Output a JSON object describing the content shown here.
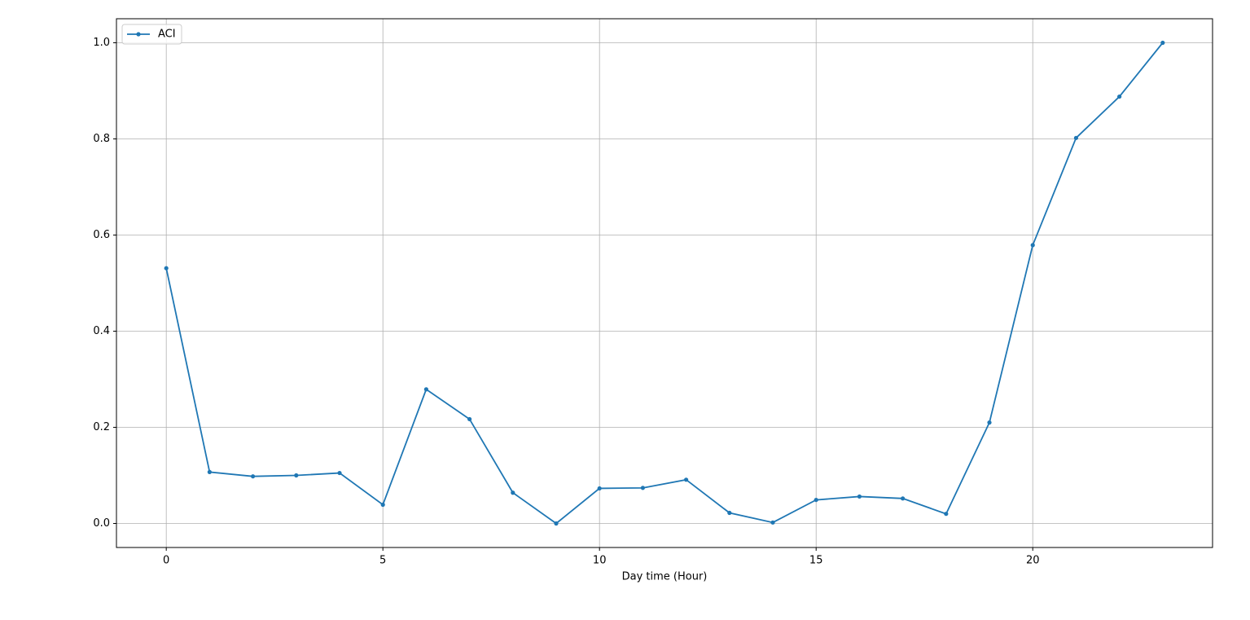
{
  "chart_data": {
    "type": "line",
    "xlabel": "Day time (Hour)",
    "x": [
      0,
      1,
      2,
      3,
      4,
      5,
      6,
      7,
      8,
      9,
      10,
      11,
      12,
      13,
      14,
      15,
      16,
      17,
      18,
      19,
      20,
      21,
      22,
      23
    ],
    "series": [
      {
        "name": "ACI",
        "color": "#1f77b4",
        "marker": "o",
        "values": [
          0.531,
          0.107,
          0.098,
          0.1,
          0.105,
          0.039,
          0.279,
          0.217,
          0.064,
          0.0,
          0.073,
          0.074,
          0.091,
          0.022,
          0.002,
          0.049,
          0.056,
          0.052,
          0.02,
          0.21,
          0.579,
          0.802,
          0.888,
          1.0
        ]
      }
    ],
    "xlim": [
      -1.15,
      24.15
    ],
    "ylim": [
      -0.05,
      1.05
    ],
    "xticks": [
      0,
      5,
      10,
      15,
      20
    ],
    "yticks": [
      {
        "value": 0,
        "label": "0.0"
      },
      {
        "value": 0.2,
        "label": "0.2"
      },
      {
        "value": 0.4,
        "label": "0.4"
      },
      {
        "value": 0.6,
        "label": "0.6"
      },
      {
        "value": 0.8,
        "label": "0.8"
      },
      {
        "value": 1.0,
        "label": "1.0"
      }
    ],
    "grid": true,
    "legend": "upper left"
  }
}
